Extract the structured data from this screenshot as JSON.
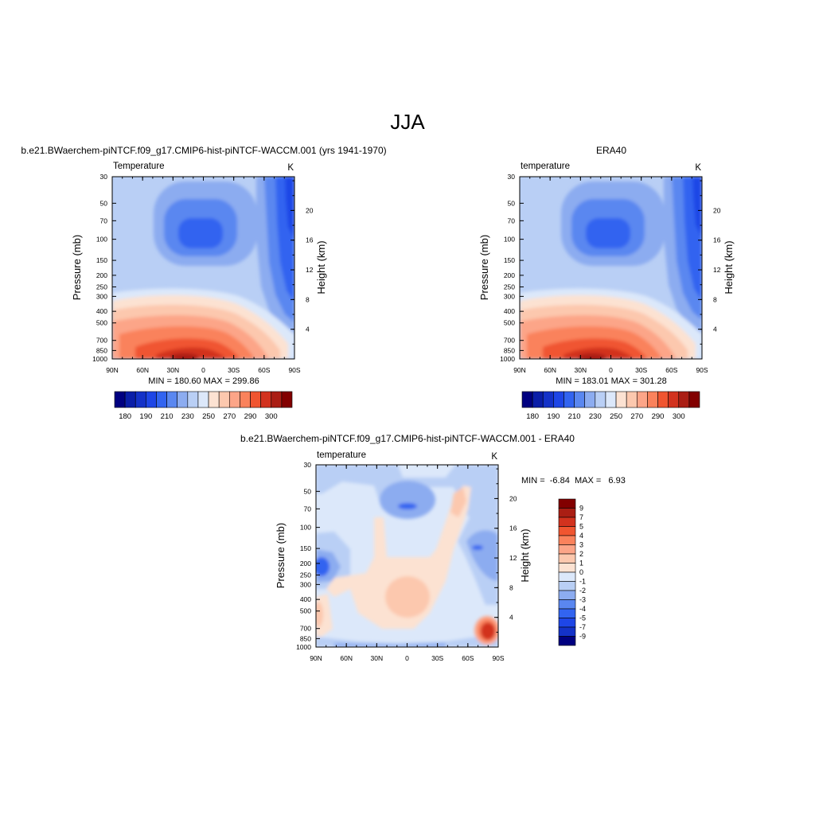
{
  "figure": {
    "title": "JJA"
  },
  "chart_data": [
    {
      "type": "heatmap",
      "title": "b.e21.BWaerchem-piNTCF.f09_g17.CMIP6-hist-piNTCF-WACCM.001 (yrs 1941-1970)",
      "left_string": "Temperature",
      "right_string": "K",
      "ylabel": "Pressure (mb)",
      "ylabel_right": "Height (km)",
      "x_ticks": [
        "90N",
        "60N",
        "30N",
        "0",
        "30S",
        "60S",
        "90S"
      ],
      "y_ticks": [
        "30",
        "50",
        "70",
        "100",
        "150",
        "200",
        "250",
        "300",
        "400",
        "500",
        "700",
        "850",
        "1000"
      ],
      "y_ticks_right": [
        "20",
        "16",
        "12",
        "8",
        "4"
      ],
      "stats": "MIN = 180.60  MAX = 299.86",
      "colorbar": {
        "orientation": "horizontal",
        "labels": [
          "180",
          "190",
          "210",
          "230",
          "250",
          "270",
          "290",
          "300"
        ],
        "colors": [
          "#000080",
          "#0a1ea8",
          "#1432c8",
          "#1e46e6",
          "#3264f0",
          "#5a87f0",
          "#8cacf0",
          "#b9cff5",
          "#dce8fa",
          "#fce2d2",
          "#fcc8ae",
          "#fca588",
          "#fa825c",
          "#f05530",
          "#d2321e",
          "#aa1e14",
          "#820000"
        ]
      }
    },
    {
      "type": "heatmap",
      "title": "ERA40",
      "left_string": "temperature",
      "right_string": "K",
      "ylabel": "Pressure (mb)",
      "ylabel_right": "Height (km)",
      "x_ticks": [
        "90N",
        "60N",
        "30N",
        "0",
        "30S",
        "60S",
        "90S"
      ],
      "y_ticks": [
        "30",
        "50",
        "70",
        "100",
        "150",
        "200",
        "250",
        "300",
        "400",
        "500",
        "700",
        "850",
        "1000"
      ],
      "y_ticks_right": [
        "20",
        "16",
        "12",
        "8",
        "4"
      ],
      "stats": "MIN = 183.01  MAX = 301.28",
      "colorbar": {
        "orientation": "horizontal",
        "labels": [
          "180",
          "190",
          "210",
          "230",
          "250",
          "270",
          "290",
          "300"
        ],
        "colors": [
          "#000080",
          "#0a1ea8",
          "#1432c8",
          "#1e46e6",
          "#3264f0",
          "#5a87f0",
          "#8cacf0",
          "#b9cff5",
          "#dce8fa",
          "#fce2d2",
          "#fcc8ae",
          "#fca588",
          "#fa825c",
          "#f05530",
          "#d2321e",
          "#aa1e14",
          "#820000"
        ]
      }
    },
    {
      "type": "heatmap",
      "title": "b.e21.BWaerchem-piNTCF.f09_g17.CMIP6-hist-piNTCF-WACCM.001 - ERA40",
      "left_string": "temperature",
      "right_string": "K",
      "ylabel": "Pressure (mb)",
      "ylabel_right": "Height (km)",
      "x_ticks": [
        "90N",
        "60N",
        "30N",
        "0",
        "30S",
        "60S",
        "90S"
      ],
      "y_ticks": [
        "30",
        "50",
        "70",
        "100",
        "150",
        "200",
        "250",
        "300",
        "400",
        "500",
        "700",
        "850",
        "1000"
      ],
      "y_ticks_right": [
        "20",
        "16",
        "12",
        "8",
        "4"
      ],
      "stats": "MIN =  -6.84  MAX =   6.93",
      "colorbar": {
        "orientation": "vertical",
        "labels": [
          "9",
          "7",
          "5",
          "4",
          "3",
          "2",
          "1",
          "0",
          "-1",
          "-2",
          "-3",
          "-4",
          "-5",
          "-7",
          "-9"
        ],
        "colors": [
          "#820000",
          "#aa1e14",
          "#d2321e",
          "#f05530",
          "#fa825c",
          "#fca588",
          "#fcc8ae",
          "#fce2d2",
          "#dce8fa",
          "#b9cff5",
          "#8cacf0",
          "#5a87f0",
          "#3264f0",
          "#1e46e6",
          "#1432c8",
          "#000080"
        ]
      }
    }
  ]
}
